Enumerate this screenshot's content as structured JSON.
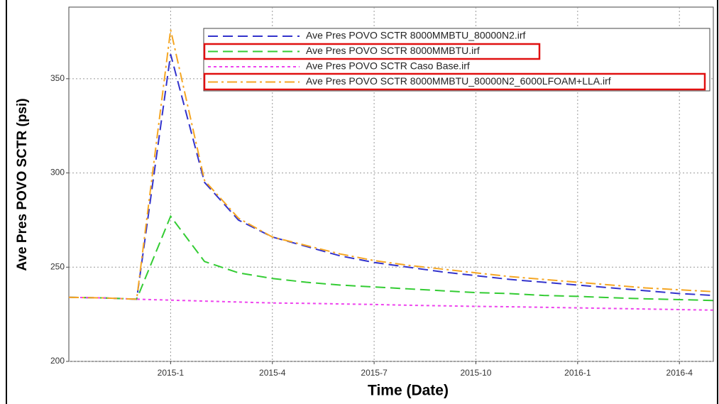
{
  "chart_data": {
    "type": "line",
    "xlabel": "Time (Date)",
    "ylabel": "Ave Pres POVO SCTR (psi)",
    "x": [
      "2014-10",
      "2014-11",
      "2014-12",
      "2015-1",
      "2015-2",
      "2015-3",
      "2015-4",
      "2015-5",
      "2015-6",
      "2015-7",
      "2015-8",
      "2015-9",
      "2015-10",
      "2015-11",
      "2015-12",
      "2016-1",
      "2016-2",
      "2016-3",
      "2016-4",
      "2016-5"
    ],
    "series": [
      {
        "name": "Ave Pres POVO SCTR 8000MMBTU_80000N2.irf",
        "color": "#3333cc",
        "linestyle": "dashed",
        "values": [
          234,
          233.7,
          233,
          363,
          295,
          275,
          266,
          261,
          256,
          252.5,
          250,
          247.5,
          245.5,
          243.5,
          242,
          240.5,
          239,
          237.5,
          236,
          235
        ]
      },
      {
        "name": "Ave Pres POVO SCTR 8000MMBTU.irf",
        "color": "#33cc33",
        "linestyle": "dashed",
        "values": [
          234,
          233.7,
          233,
          277,
          253,
          247,
          244,
          242,
          240.5,
          239.5,
          238.5,
          237.5,
          236.5,
          236,
          235,
          234.5,
          233.8,
          233.2,
          232.8,
          232.3
        ]
      },
      {
        "name": "Ave Pres POVO SCTR Caso Base.irf",
        "color": "#ee44ee",
        "linestyle": "dotted",
        "values": [
          234,
          233.7,
          233,
          232.5,
          232,
          231.5,
          231,
          230.8,
          230.5,
          230.2,
          229.8,
          229.5,
          229.2,
          229,
          228.7,
          228.4,
          228.1,
          227.8,
          227.5,
          227.2
        ]
      },
      {
        "name": "Ave Pres POVO SCTR 8000MMBTU_80000N2_6000LFOAM+LLA.irf",
        "color": "#f5a623",
        "linestyle": "dash-dot",
        "values": [
          234,
          233.7,
          233,
          376,
          296,
          276,
          266,
          261.5,
          257,
          253.5,
          251,
          249,
          247,
          245,
          243.5,
          242,
          240.5,
          239,
          238,
          237
        ]
      }
    ],
    "xlim": [
      "2014-10",
      "2016-5"
    ],
    "xticks": [
      "2015-1",
      "2015-4",
      "2015-7",
      "2015-10",
      "2016-1",
      "2016-4"
    ],
    "ylim": [
      200,
      388
    ],
    "yticks": [
      200,
      250,
      300,
      350
    ],
    "grid": true
  }
}
